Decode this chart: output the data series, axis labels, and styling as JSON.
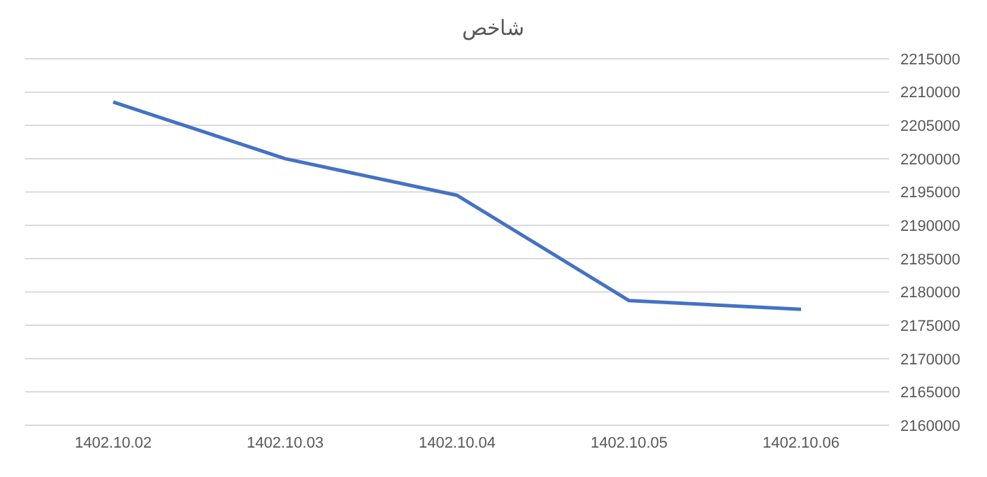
{
  "chart_data": {
    "type": "line",
    "title": "شاخص",
    "categories": [
      "1402.10.02",
      "1402.10.03",
      "1402.10.04",
      "1402.10.05",
      "1402.10.06"
    ],
    "series": [
      {
        "color": "#4472c4",
        "values": [
          2208500,
          2200000,
          2194500,
          2178700,
          2177400
        ]
      }
    ],
    "ylim": [
      2160000,
      2215000
    ],
    "yticks": [
      2160000,
      2165000,
      2170000,
      2175000,
      2180000,
      2185000,
      2190000,
      2195000,
      2200000,
      2205000,
      2210000,
      2215000
    ],
    "grid": "y",
    "marker": "none",
    "line_style": "solid"
  }
}
